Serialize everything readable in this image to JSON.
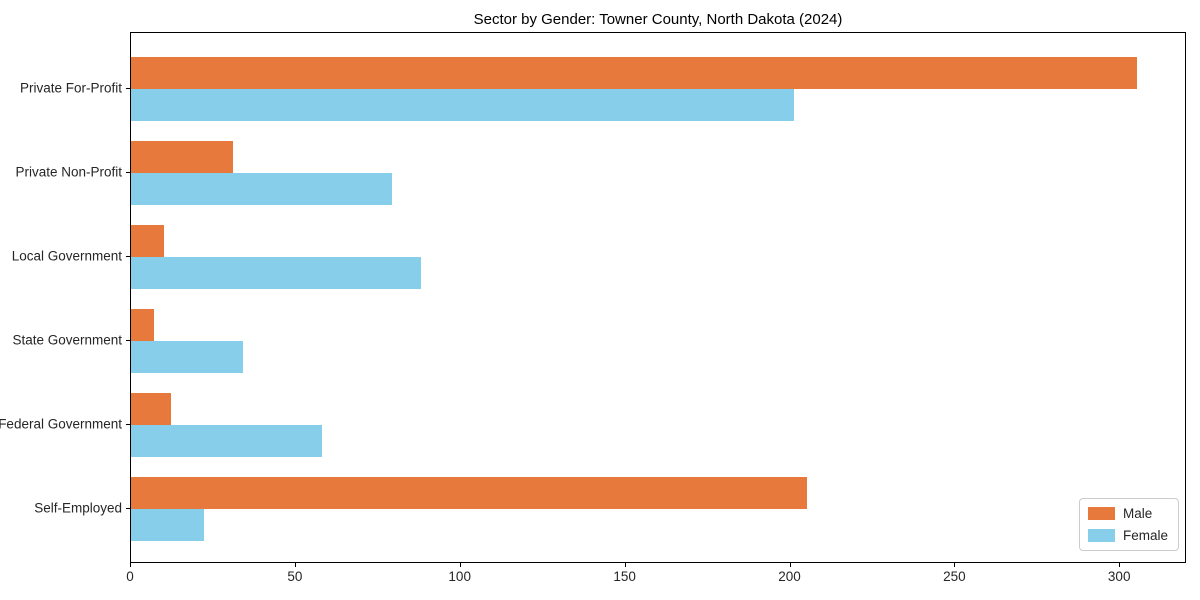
{
  "chart_data": {
    "type": "bar",
    "orientation": "horizontal",
    "title": "Sector by Gender: Towner County, North Dakota (2024)",
    "categories": [
      "Private For-Profit",
      "Private Non-Profit",
      "Local Government",
      "State Government",
      "Federal Government",
      "Self-Employed"
    ],
    "series": [
      {
        "name": "Male",
        "color": "#e8793c",
        "values": [
          305,
          31,
          10,
          7,
          12,
          205
        ]
      },
      {
        "name": "Female",
        "color": "#87ceeb",
        "values": [
          201,
          79,
          88,
          34,
          58,
          22
        ]
      }
    ],
    "xlabel": "",
    "ylabel": "",
    "xlim": [
      0,
      320.25
    ],
    "xticks": [
      0,
      50,
      100,
      150,
      200,
      250,
      300
    ],
    "grid": false,
    "legend_position": "lower right",
    "background": "#ffffff",
    "spine_color": "#000000"
  }
}
